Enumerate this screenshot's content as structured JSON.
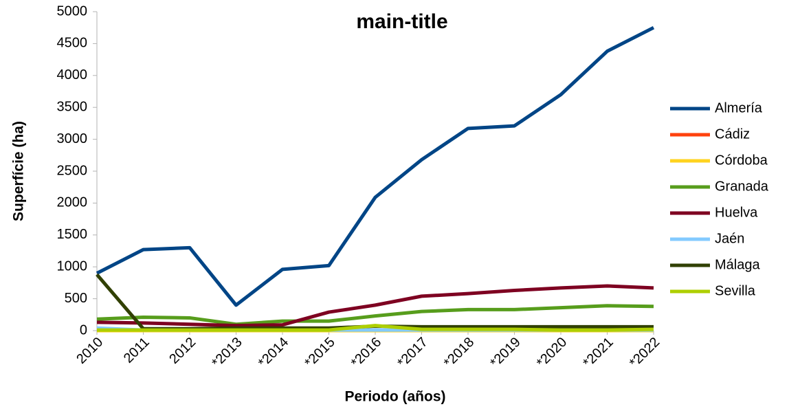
{
  "chart_data": {
    "type": "line",
    "title": "main-title",
    "x_label": "Periodo (años)",
    "y_label": "Superfície (ha)",
    "categories": [
      "2010",
      "2011",
      "2012",
      "*2013",
      "*2014",
      "*2015",
      "*2016",
      "*2017",
      "*2018",
      "*2019",
      "*2020",
      "*2021",
      "*2022"
    ],
    "series": [
      {
        "name": "Almería",
        "color": "#004586",
        "values": [
          900,
          1270,
          1300,
          400,
          960,
          1020,
          2090,
          2680,
          3170,
          3210,
          3700,
          4380,
          4750
        ]
      },
      {
        "name": "Cádiz",
        "color": "#ff420e",
        "values": [
          0,
          0,
          0,
          0,
          0,
          0,
          0,
          0,
          0,
          0,
          0,
          0,
          0
        ]
      },
      {
        "name": "Córdoba",
        "color": "#ffd320",
        "values": [
          0,
          0,
          0,
          0,
          0,
          0,
          0,
          0,
          0,
          0,
          0,
          0,
          0
        ]
      },
      {
        "name": "Granada",
        "color": "#579d1c",
        "values": [
          180,
          210,
          200,
          100,
          150,
          150,
          230,
          300,
          330,
          330,
          360,
          390,
          380
        ]
      },
      {
        "name": "Huelva",
        "color": "#7e0021",
        "values": [
          130,
          120,
          100,
          80,
          90,
          290,
          400,
          540,
          580,
          630,
          670,
          700,
          670
        ]
      },
      {
        "name": "Jaén",
        "color": "#83caff",
        "values": [
          40,
          10,
          10,
          10,
          10,
          10,
          10,
          10,
          10,
          10,
          10,
          10,
          10
        ]
      },
      {
        "name": "Málaga",
        "color": "#314004",
        "values": [
          880,
          30,
          30,
          40,
          40,
          40,
          70,
          60,
          60,
          60,
          60,
          60,
          60
        ]
      },
      {
        "name": "Sevilla",
        "color": "#aecf00",
        "values": [
          10,
          10,
          10,
          10,
          10,
          10,
          80,
          20,
          20,
          20,
          10,
          10,
          20
        ]
      }
    ],
    "ylim": [
      0,
      5000
    ],
    "yticks": [
      0,
      500,
      1000,
      1500,
      2000,
      2500,
      3000,
      3500,
      4000,
      4500,
      5000
    ],
    "grid": false,
    "legend": "right"
  }
}
